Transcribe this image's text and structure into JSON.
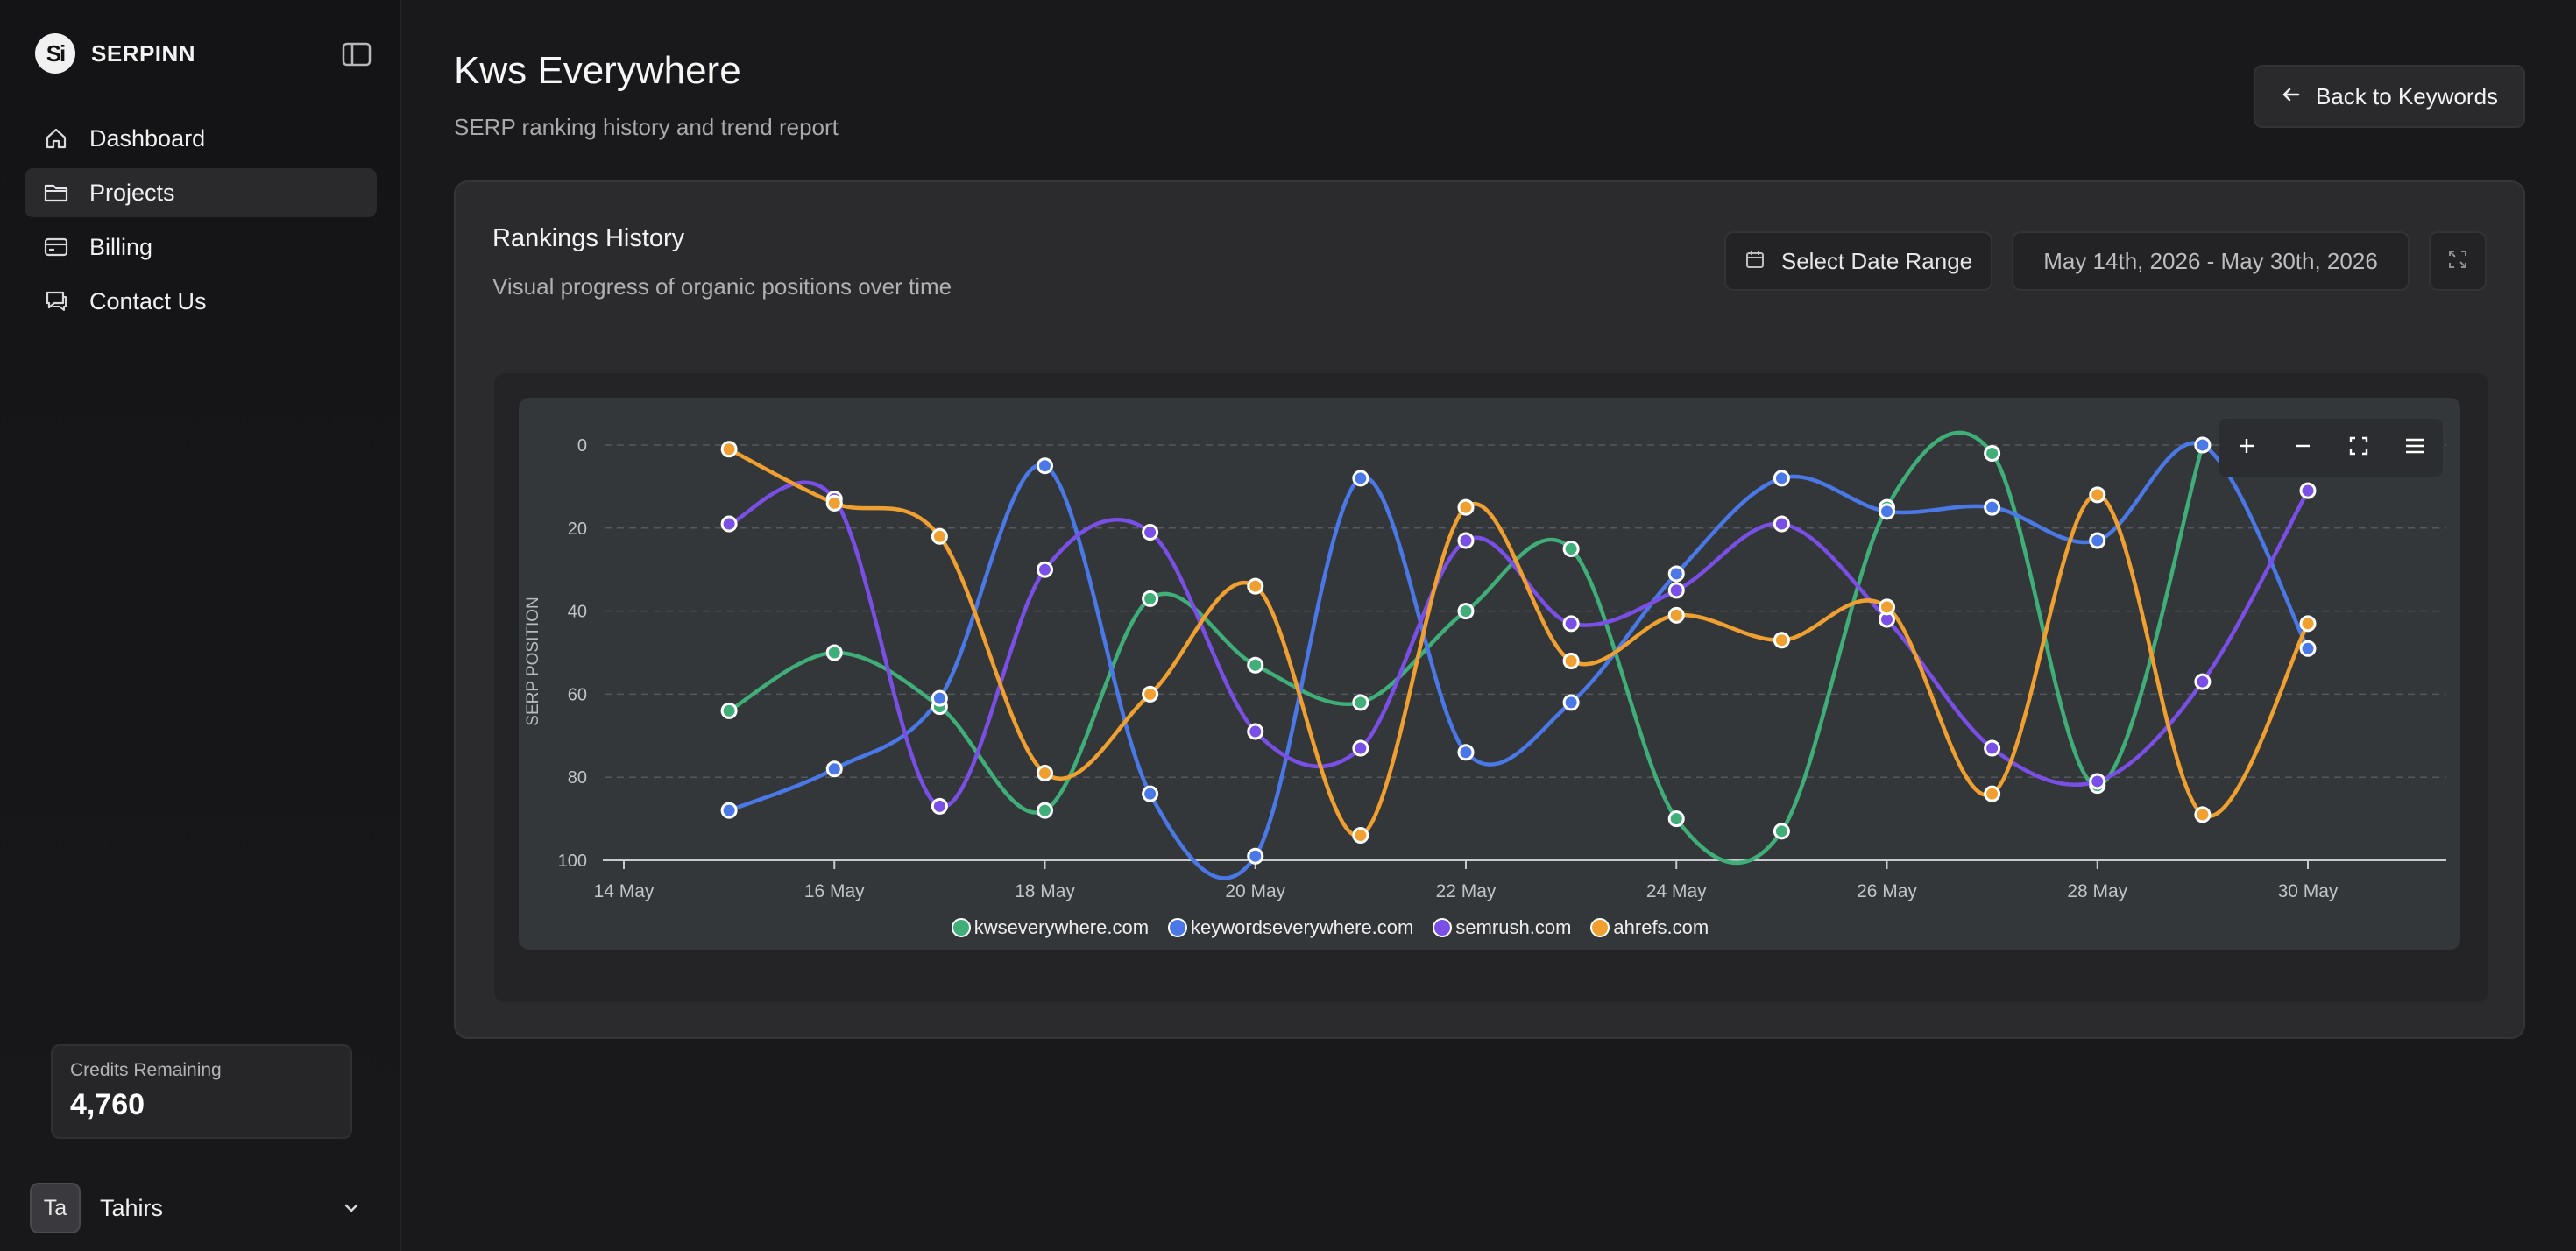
{
  "sidebar": {
    "brand": {
      "logo_text": "Si",
      "name": "SERPINN"
    },
    "items": [
      {
        "label": "Dashboard",
        "icon": "home-icon",
        "active": false
      },
      {
        "label": "Projects",
        "icon": "folder-icon",
        "active": true
      },
      {
        "label": "Billing",
        "icon": "credit-card-icon",
        "active": false
      },
      {
        "label": "Contact Us",
        "icon": "chat-icon",
        "active": false
      }
    ],
    "credits": {
      "label": "Credits Remaining",
      "value": "4,760"
    },
    "user": {
      "initials": "Ta",
      "name": "Tahirs"
    }
  },
  "header": {
    "title": "Kws Everywhere",
    "subtitle": "SERP ranking history and trend report",
    "back_label": "Back to Keywords"
  },
  "card": {
    "title": "Rankings History",
    "subtitle": "Visual progress of organic positions over time",
    "date_button_label": "Select Date Range",
    "date_range": "May 14th, 2026 - May 30th, 2026"
  },
  "colors": {
    "green": "#3fae78",
    "blue": "#4a78e6",
    "purple": "#7a4fe6",
    "orange": "#f0a030"
  },
  "chart_data": {
    "type": "line",
    "ylabel": "SERP POSITION",
    "xlabel": "",
    "ylim": [
      0,
      100
    ],
    "y_reversed": true,
    "y_ticks": [
      "0",
      "20",
      "40",
      "60",
      "80",
      "100"
    ],
    "x_tick_labels": [
      "14 May",
      "16 May",
      "18 May",
      "20 May",
      "22 May",
      "24 May",
      "26 May",
      "28 May",
      "30 May"
    ],
    "x_start_day": 14,
    "x_end_day": 30,
    "x_days": [
      15,
      16,
      17,
      18,
      19,
      20,
      21,
      22,
      23,
      24,
      25,
      26,
      27,
      28,
      29,
      30
    ],
    "legend_position": "bottom",
    "grid": true,
    "series": [
      {
        "name": "kwseverywhere.com",
        "color": "#3fae78",
        "values": [
          64,
          50,
          63,
          88,
          37,
          53,
          62,
          40,
          25,
          90,
          93,
          15,
          2,
          82,
          0,
          null
        ]
      },
      {
        "name": "keywordseverywhere.com",
        "color": "#4a78e6",
        "values": [
          88,
          78,
          61,
          5,
          84,
          99,
          8,
          74,
          62,
          31,
          8,
          16,
          15,
          23,
          0,
          49
        ]
      },
      {
        "name": "semrush.com",
        "color": "#7a4fe6",
        "values": [
          19,
          13,
          87,
          30,
          21,
          69,
          73,
          23,
          43,
          35,
          19,
          42,
          73,
          81,
          57,
          11
        ]
      },
      {
        "name": "ahrefs.com",
        "color": "#f0a030",
        "values": [
          1,
          14,
          22,
          79,
          60,
          34,
          94,
          15,
          52,
          41,
          47,
          39,
          84,
          12,
          89,
          43
        ]
      }
    ]
  }
}
